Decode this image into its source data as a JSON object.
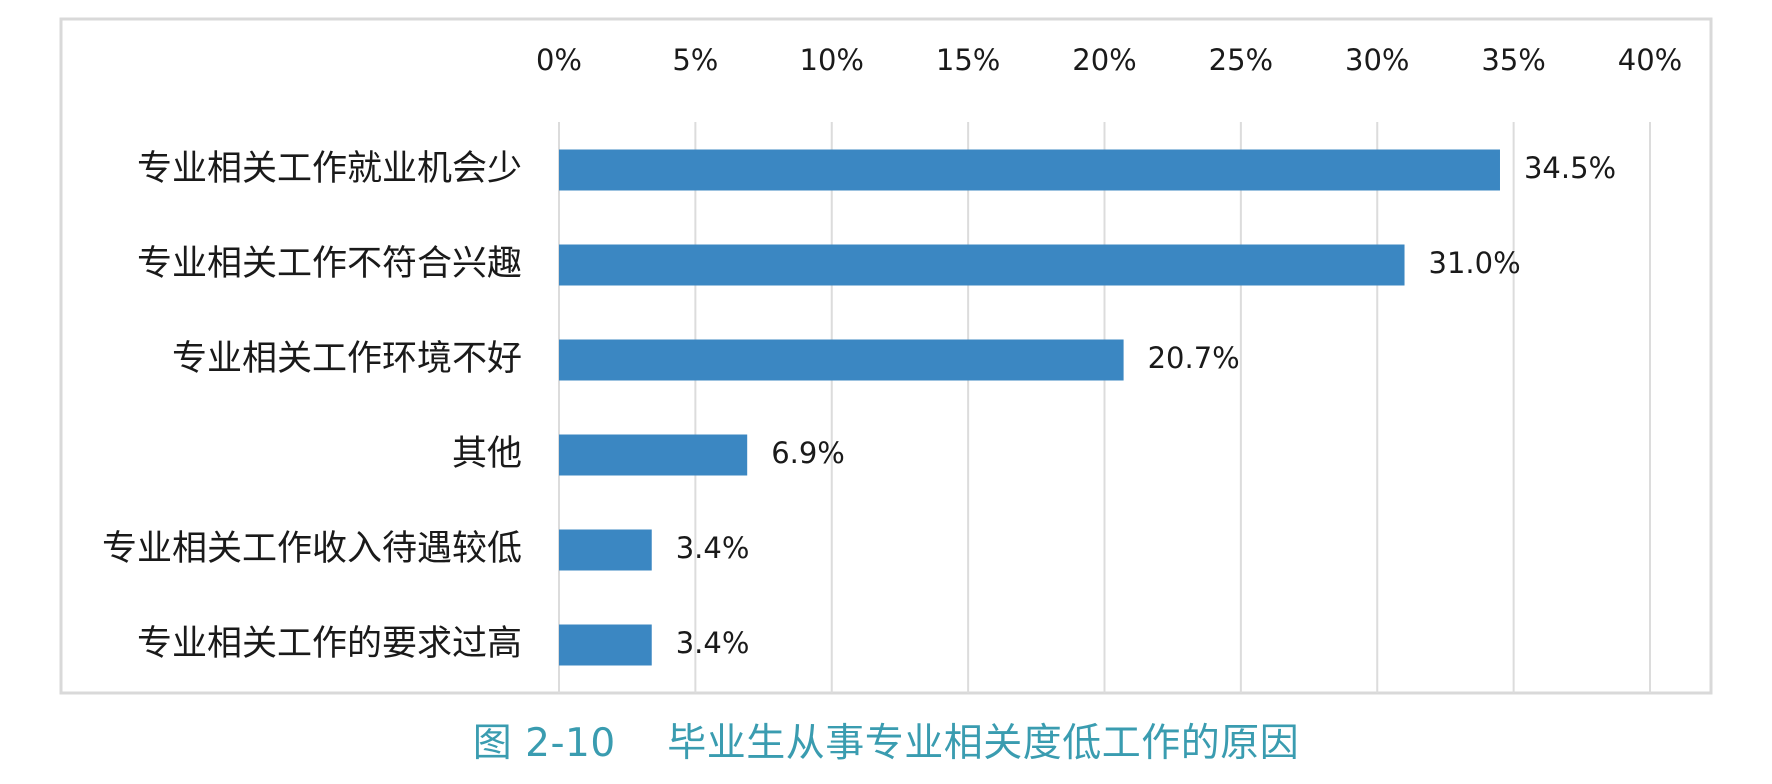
{
  "caption": "图 2-10    毕业生从事专业相关度低工作的原因",
  "colors": {
    "bar": "#3b87c2",
    "grid": "#dcdcdc",
    "frame": "#d9d9d9",
    "caption": "#3a9cb0"
  },
  "chart_data": {
    "type": "bar",
    "orientation": "horizontal",
    "categories": [
      "专业相关工作就业机会少",
      "专业相关工作不符合兴趣",
      "专业相关工作环境不好",
      "其他",
      "专业相关工作收入待遇较低",
      "专业相关工作的要求过高"
    ],
    "values": [
      34.5,
      31.0,
      20.7,
      6.9,
      3.4,
      3.4
    ],
    "value_labels": [
      "34.5%",
      "31.0%",
      "20.7%",
      "6.9%",
      "3.4%",
      "3.4%"
    ],
    "xlim": [
      0,
      40
    ],
    "xticks": [
      "0%",
      "5%",
      "10%",
      "15%",
      "20%",
      "25%",
      "30%",
      "35%",
      "40%"
    ],
    "x_axis_position": "top",
    "grid": true,
    "legend": "none"
  }
}
